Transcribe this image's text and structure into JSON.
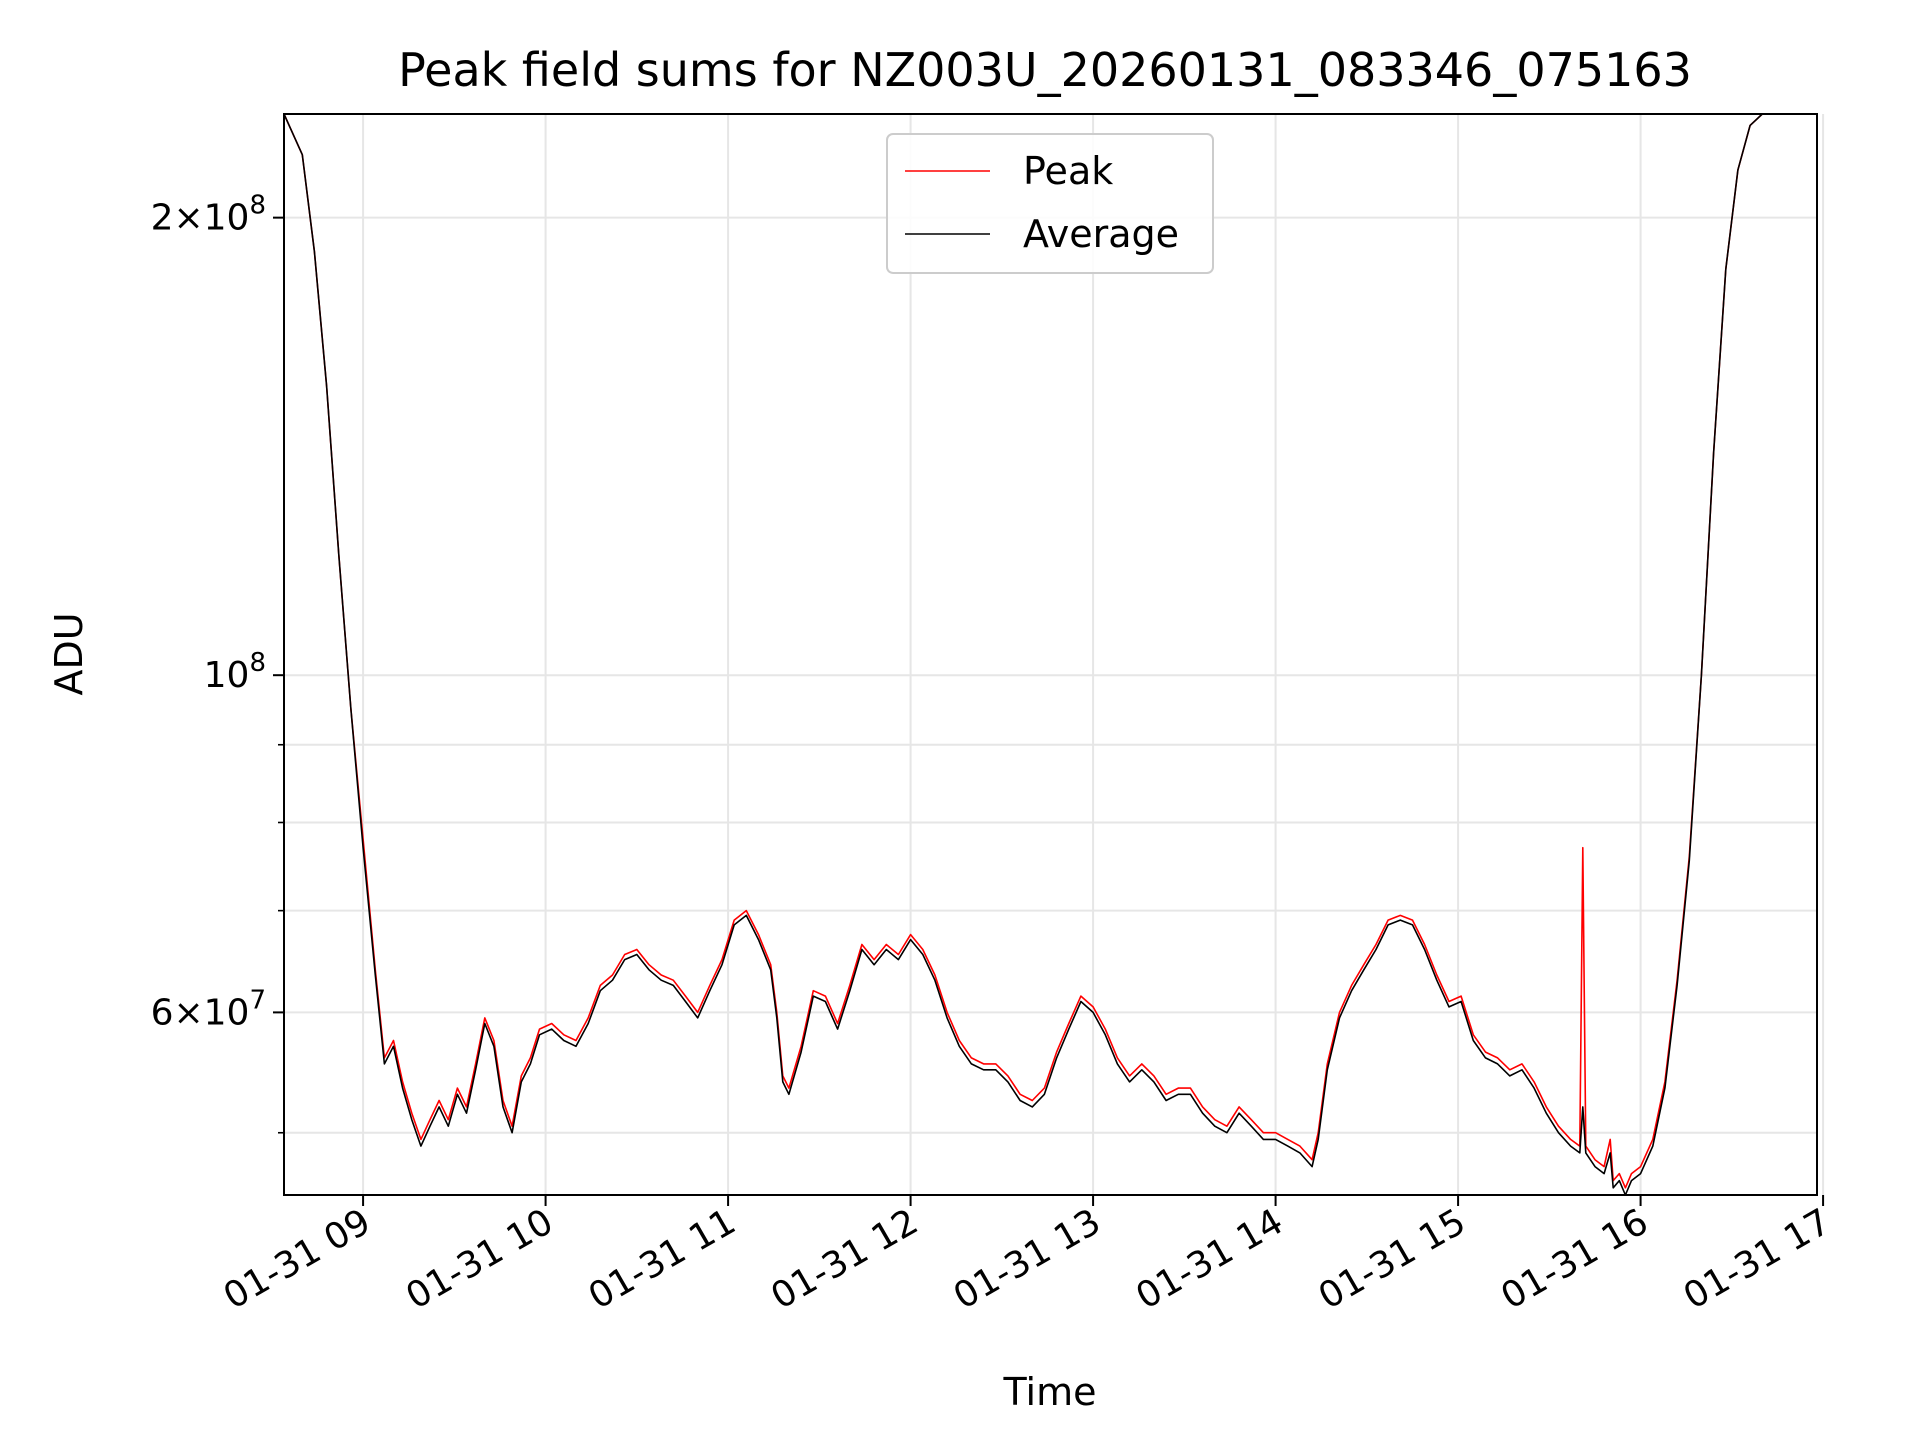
{
  "chart_data": {
    "type": "line",
    "title": "Peak field sums for NZ003U_20260131_083346_075163",
    "xlabel": "Time",
    "ylabel": "ADU",
    "y_scale": "log",
    "grid": true,
    "legend_position": "top-center",
    "x_range": [
      "01-31 08:34",
      "01-31 16:58"
    ],
    "ylim": [
      45500000,
      234000000
    ],
    "x_ticks": [
      "01-31 09",
      "01-31 10",
      "01-31 11",
      "01-31 12",
      "01-31 13",
      "01-31 14",
      "01-31 15",
      "01-31 16",
      "01-31 17"
    ],
    "y_major_ticks": [
      {
        "value": 200000000,
        "mantissa": "2",
        "exponent": "8"
      },
      {
        "value": 100000000,
        "mantissa": "",
        "exponent": "8"
      },
      {
        "value": 60000000,
        "mantissa": "6",
        "exponent": "7"
      }
    ],
    "y_minor_tick_values": [
      50000000,
      70000000,
      80000000,
      90000000
    ],
    "series": [
      {
        "name": "Peak",
        "color": "#ff0000",
        "points": [
          [
            "08:34",
            234000000
          ],
          [
            "08:40",
            220000000
          ],
          [
            "08:44",
            190000000
          ],
          [
            "08:48",
            155000000
          ],
          [
            "08:52",
            120000000
          ],
          [
            "08:56",
            95000000
          ],
          [
            "09:00",
            78000000
          ],
          [
            "09:04",
            64000000
          ],
          [
            "09:07",
            56000000
          ],
          [
            "09:10",
            57500000
          ],
          [
            "09:13",
            54000000
          ],
          [
            "09:16",
            51500000
          ],
          [
            "09:19",
            49500000
          ],
          [
            "09:22",
            51000000
          ],
          [
            "09:25",
            52500000
          ],
          [
            "09:28",
            51000000
          ],
          [
            "09:31",
            53500000
          ],
          [
            "09:34",
            52000000
          ],
          [
            "09:37",
            55500000
          ],
          [
            "09:40",
            59500000
          ],
          [
            "09:43",
            57500000
          ],
          [
            "09:46",
            52500000
          ],
          [
            "09:49",
            50500000
          ],
          [
            "09:52",
            54500000
          ],
          [
            "09:55",
            56000000
          ],
          [
            "09:58",
            58500000
          ],
          [
            "10:02",
            59000000
          ],
          [
            "10:06",
            58000000
          ],
          [
            "10:10",
            57500000
          ],
          [
            "10:14",
            59500000
          ],
          [
            "10:18",
            62500000
          ],
          [
            "10:22",
            63500000
          ],
          [
            "10:26",
            65500000
          ],
          [
            "10:30",
            66000000
          ],
          [
            "10:34",
            64500000
          ],
          [
            "10:38",
            63500000
          ],
          [
            "10:42",
            63000000
          ],
          [
            "10:46",
            61500000
          ],
          [
            "10:50",
            60000000
          ],
          [
            "10:54",
            62500000
          ],
          [
            "10:58",
            65000000
          ],
          [
            "11:02",
            69000000
          ],
          [
            "11:06",
            70000000
          ],
          [
            "11:10",
            67500000
          ],
          [
            "11:14",
            64500000
          ],
          [
            "11:16",
            60000000
          ],
          [
            "11:18",
            54500000
          ],
          [
            "11:20",
            53500000
          ],
          [
            "11:24",
            57000000
          ],
          [
            "11:28",
            62000000
          ],
          [
            "11:32",
            61500000
          ],
          [
            "11:36",
            59000000
          ],
          [
            "11:40",
            62500000
          ],
          [
            "11:44",
            66500000
          ],
          [
            "11:48",
            65000000
          ],
          [
            "11:52",
            66500000
          ],
          [
            "11:56",
            65500000
          ],
          [
            "12:00",
            67500000
          ],
          [
            "12:04",
            66000000
          ],
          [
            "12:08",
            63500000
          ],
          [
            "12:12",
            60000000
          ],
          [
            "12:16",
            57500000
          ],
          [
            "12:20",
            56000000
          ],
          [
            "12:24",
            55500000
          ],
          [
            "12:28",
            55500000
          ],
          [
            "12:32",
            54500000
          ],
          [
            "12:36",
            53000000
          ],
          [
            "12:40",
            52500000
          ],
          [
            "12:44",
            53500000
          ],
          [
            "12:48",
            56500000
          ],
          [
            "12:52",
            59000000
          ],
          [
            "12:56",
            61500000
          ],
          [
            "13:00",
            60500000
          ],
          [
            "13:04",
            58500000
          ],
          [
            "13:08",
            56000000
          ],
          [
            "13:12",
            54500000
          ],
          [
            "13:16",
            55500000
          ],
          [
            "13:20",
            54500000
          ],
          [
            "13:24",
            53000000
          ],
          [
            "13:28",
            53500000
          ],
          [
            "13:32",
            53500000
          ],
          [
            "13:36",
            52000000
          ],
          [
            "13:40",
            51000000
          ],
          [
            "13:44",
            50500000
          ],
          [
            "13:48",
            52000000
          ],
          [
            "13:52",
            51000000
          ],
          [
            "13:56",
            50000000
          ],
          [
            "14:00",
            50000000
          ],
          [
            "14:04",
            49500000
          ],
          [
            "14:08",
            49000000
          ],
          [
            "14:12",
            48000000
          ],
          [
            "14:14",
            50000000
          ],
          [
            "14:17",
            55500000
          ],
          [
            "14:21",
            60000000
          ],
          [
            "14:25",
            62500000
          ],
          [
            "14:29",
            64500000
          ],
          [
            "14:33",
            66500000
          ],
          [
            "14:37",
            69000000
          ],
          [
            "14:41",
            69500000
          ],
          [
            "14:45",
            69000000
          ],
          [
            "14:49",
            66500000
          ],
          [
            "14:53",
            63500000
          ],
          [
            "14:57",
            61000000
          ],
          [
            "15:01",
            61500000
          ],
          [
            "15:05",
            58000000
          ],
          [
            "15:09",
            56500000
          ],
          [
            "15:13",
            56000000
          ],
          [
            "15:17",
            55000000
          ],
          [
            "15:21",
            55500000
          ],
          [
            "15:25",
            54000000
          ],
          [
            "15:29",
            52000000
          ],
          [
            "15:33",
            50500000
          ],
          [
            "15:37",
            49500000
          ],
          [
            "15:40",
            49000000
          ],
          [
            "15:41",
            77000000
          ],
          [
            "15:42",
            49000000
          ],
          [
            "15:45",
            48000000
          ],
          [
            "15:48",
            47500000
          ],
          [
            "15:50",
            49500000
          ],
          [
            "15:51",
            46500000
          ],
          [
            "15:53",
            47000000
          ],
          [
            "15:55",
            46000000
          ],
          [
            "15:57",
            47000000
          ],
          [
            "16:00",
            47500000
          ],
          [
            "16:04",
            49500000
          ],
          [
            "16:08",
            54000000
          ],
          [
            "16:12",
            63000000
          ],
          [
            "16:16",
            76000000
          ],
          [
            "16:20",
            100000000
          ],
          [
            "16:24",
            140000000
          ],
          [
            "16:28",
            185000000
          ],
          [
            "16:32",
            215000000
          ],
          [
            "16:36",
            230000000
          ],
          [
            "16:40",
            234000000
          ]
        ]
      },
      {
        "name": "Average",
        "color": "#000000",
        "points": [
          [
            "08:34",
            234000000
          ],
          [
            "08:40",
            220000000
          ],
          [
            "08:44",
            190000000
          ],
          [
            "08:48",
            155000000
          ],
          [
            "08:52",
            120000000
          ],
          [
            "08:56",
            95000000
          ],
          [
            "09:00",
            77000000
          ],
          [
            "09:04",
            63500000
          ],
          [
            "09:07",
            55500000
          ],
          [
            "09:10",
            57000000
          ],
          [
            "09:13",
            53500000
          ],
          [
            "09:16",
            51000000
          ],
          [
            "09:19",
            49000000
          ],
          [
            "09:22",
            50500000
          ],
          [
            "09:25",
            52000000
          ],
          [
            "09:28",
            50500000
          ],
          [
            "09:31",
            53000000
          ],
          [
            "09:34",
            51500000
          ],
          [
            "09:37",
            55000000
          ],
          [
            "09:40",
            59000000
          ],
          [
            "09:43",
            57000000
          ],
          [
            "09:46",
            52000000
          ],
          [
            "09:49",
            50000000
          ],
          [
            "09:52",
            54000000
          ],
          [
            "09:55",
            55500000
          ],
          [
            "09:58",
            58000000
          ],
          [
            "10:02",
            58500000
          ],
          [
            "10:06",
            57500000
          ],
          [
            "10:10",
            57000000
          ],
          [
            "10:14",
            59000000
          ],
          [
            "10:18",
            62000000
          ],
          [
            "10:22",
            63000000
          ],
          [
            "10:26",
            65000000
          ],
          [
            "10:30",
            65500000
          ],
          [
            "10:34",
            64000000
          ],
          [
            "10:38",
            63000000
          ],
          [
            "10:42",
            62500000
          ],
          [
            "10:46",
            61000000
          ],
          [
            "10:50",
            59500000
          ],
          [
            "10:54",
            62000000
          ],
          [
            "10:58",
            64500000
          ],
          [
            "11:02",
            68500000
          ],
          [
            "11:06",
            69500000
          ],
          [
            "11:10",
            67000000
          ],
          [
            "11:14",
            64000000
          ],
          [
            "11:16",
            59500000
          ],
          [
            "11:18",
            54000000
          ],
          [
            "11:20",
            53000000
          ],
          [
            "11:24",
            56500000
          ],
          [
            "11:28",
            61500000
          ],
          [
            "11:32",
            61000000
          ],
          [
            "11:36",
            58500000
          ],
          [
            "11:40",
            62000000
          ],
          [
            "11:44",
            66000000
          ],
          [
            "11:48",
            64500000
          ],
          [
            "11:52",
            66000000
          ],
          [
            "11:56",
            65000000
          ],
          [
            "12:00",
            67000000
          ],
          [
            "12:04",
            65500000
          ],
          [
            "12:08",
            63000000
          ],
          [
            "12:12",
            59500000
          ],
          [
            "12:16",
            57000000
          ],
          [
            "12:20",
            55500000
          ],
          [
            "12:24",
            55000000
          ],
          [
            "12:28",
            55000000
          ],
          [
            "12:32",
            54000000
          ],
          [
            "12:36",
            52500000
          ],
          [
            "12:40",
            52000000
          ],
          [
            "12:44",
            53000000
          ],
          [
            "12:48",
            56000000
          ],
          [
            "12:52",
            58500000
          ],
          [
            "12:56",
            61000000
          ],
          [
            "13:00",
            60000000
          ],
          [
            "13:04",
            58000000
          ],
          [
            "13:08",
            55500000
          ],
          [
            "13:12",
            54000000
          ],
          [
            "13:16",
            55000000
          ],
          [
            "13:20",
            54000000
          ],
          [
            "13:24",
            52500000
          ],
          [
            "13:28",
            53000000
          ],
          [
            "13:32",
            53000000
          ],
          [
            "13:36",
            51500000
          ],
          [
            "13:40",
            50500000
          ],
          [
            "13:44",
            50000000
          ],
          [
            "13:48",
            51500000
          ],
          [
            "13:52",
            50500000
          ],
          [
            "13:56",
            49500000
          ],
          [
            "14:00",
            49500000
          ],
          [
            "14:04",
            49000000
          ],
          [
            "14:08",
            48500000
          ],
          [
            "14:12",
            47500000
          ],
          [
            "14:14",
            49500000
          ],
          [
            "14:17",
            55000000
          ],
          [
            "14:21",
            59500000
          ],
          [
            "14:25",
            62000000
          ],
          [
            "14:29",
            64000000
          ],
          [
            "14:33",
            66000000
          ],
          [
            "14:37",
            68500000
          ],
          [
            "14:41",
            69000000
          ],
          [
            "14:45",
            68500000
          ],
          [
            "14:49",
            66000000
          ],
          [
            "14:53",
            63000000
          ],
          [
            "14:57",
            60500000
          ],
          [
            "15:01",
            61000000
          ],
          [
            "15:05",
            57500000
          ],
          [
            "15:09",
            56000000
          ],
          [
            "15:13",
            55500000
          ],
          [
            "15:17",
            54500000
          ],
          [
            "15:21",
            55000000
          ],
          [
            "15:25",
            53500000
          ],
          [
            "15:29",
            51500000
          ],
          [
            "15:33",
            50000000
          ],
          [
            "15:37",
            49000000
          ],
          [
            "15:40",
            48500000
          ],
          [
            "15:41",
            52000000
          ],
          [
            "15:42",
            48500000
          ],
          [
            "15:45",
            47500000
          ],
          [
            "15:48",
            47000000
          ],
          [
            "15:50",
            48500000
          ],
          [
            "15:51",
            46000000
          ],
          [
            "15:53",
            46500000
          ],
          [
            "15:55",
            45500000
          ],
          [
            "15:57",
            46500000
          ],
          [
            "16:00",
            47000000
          ],
          [
            "16:04",
            49000000
          ],
          [
            "16:08",
            53500000
          ],
          [
            "16:12",
            62500000
          ],
          [
            "16:16",
            75500000
          ],
          [
            "16:20",
            100000000
          ],
          [
            "16:24",
            140000000
          ],
          [
            "16:28",
            185000000
          ],
          [
            "16:32",
            215000000
          ],
          [
            "16:36",
            230000000
          ],
          [
            "16:40",
            234000000
          ]
        ]
      }
    ]
  }
}
